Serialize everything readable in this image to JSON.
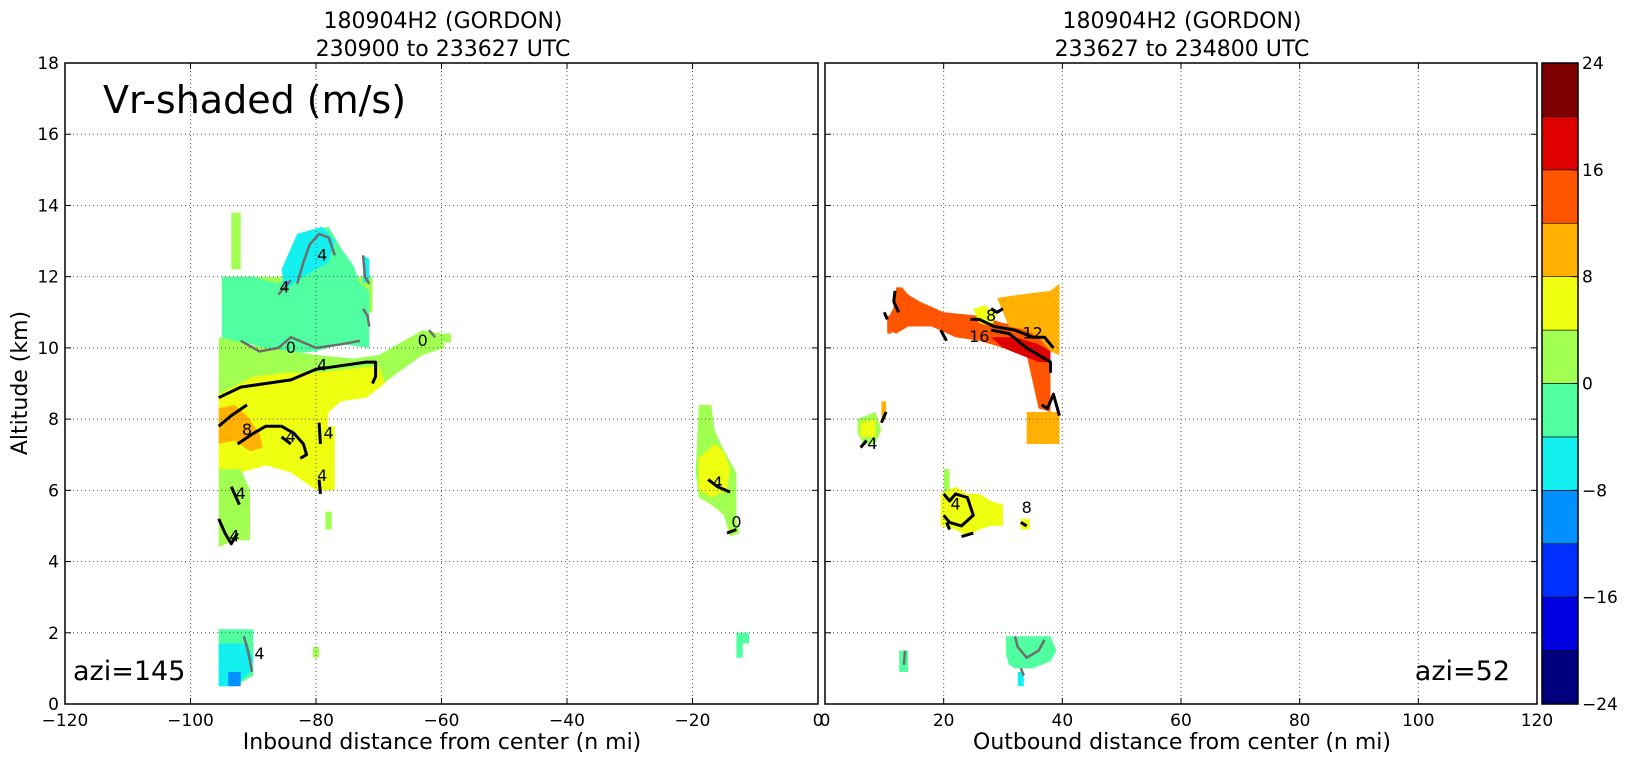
{
  "left_panel": {
    "title_line1": "180904H2 (GORDON)",
    "title_line2": "230900 to 233627 UTC",
    "xlabel": "Inbound distance from center (n mi)",
    "ylabel": "Altitude (km)",
    "inset_label": "Vr-shaded (m/s)",
    "azi_label": "azi=145"
  },
  "right_panel": {
    "title_line1": "180904H2 (GORDON)",
    "title_line2": "233627 to 234800 UTC",
    "xlabel": "Outbound distance from center (n mi)",
    "azi_label": "azi=52"
  },
  "colorbar": {
    "levels": [
      -24,
      -20,
      -16,
      -12,
      -8,
      -4,
      0,
      4,
      8,
      12,
      16,
      20,
      24
    ],
    "tick_labels": [
      "24",
      "16",
      "8",
      "0",
      "−8",
      "−16",
      "−24"
    ],
    "tick_values": [
      24,
      16,
      8,
      0,
      -8,
      -16,
      -24
    ],
    "colors": [
      "#00007f",
      "#0000e0",
      "#0030ff",
      "#0090ff",
      "#12f0f0",
      "#50ffa0",
      "#a0ff50",
      "#eeff10",
      "#ffb000",
      "#ff5500",
      "#e00000",
      "#7f0000"
    ]
  },
  "chart_data": [
    {
      "type": "heatmap",
      "title": "180904H2 (GORDON) 230900 to 233627 UTC",
      "xlabel": "Inbound distance from center (n mi)",
      "ylabel": "Altitude (km)",
      "xlim": [
        -120,
        0
      ],
      "ylim": [
        0,
        18
      ],
      "x_ticks": [
        "−120",
        "−100",
        "−80",
        "−60",
        "−40",
        "−20",
        "0"
      ],
      "x_tick_values": [
        -120,
        -100,
        -80,
        -60,
        -40,
        -20,
        0
      ],
      "y_ticks": [
        "0",
        "2",
        "4",
        "6",
        "8",
        "10",
        "12",
        "14",
        "16",
        "18"
      ],
      "y_tick_values": [
        0,
        2,
        4,
        6,
        8,
        10,
        12,
        14,
        16,
        18
      ],
      "grid": true,
      "contour_labels": [
        {
          "text": "4",
          "x": -79,
          "y": 12.6
        },
        {
          "text": "4",
          "x": -85,
          "y": 11.7
        },
        {
          "text": "0",
          "x": -84,
          "y": 10.0
        },
        {
          "text": "0",
          "x": -63,
          "y": 10.2
        },
        {
          "text": "4",
          "x": -79,
          "y": 9.5
        },
        {
          "text": "8",
          "x": -91,
          "y": 7.7
        },
        {
          "text": "4",
          "x": -84,
          "y": 7.5
        },
        {
          "text": "4",
          "x": -78,
          "y": 7.6
        },
        {
          "text": "4",
          "x": -79,
          "y": 6.4
        },
        {
          "text": "4",
          "x": -92,
          "y": 5.9
        },
        {
          "text": "4",
          "x": -93,
          "y": 4.7
        },
        {
          "text": "4",
          "x": -16,
          "y": 6.2
        },
        {
          "text": "0",
          "x": -13,
          "y": 5.1
        },
        {
          "text": "4",
          "x": -89,
          "y": 1.4
        }
      ]
    },
    {
      "type": "heatmap",
      "title": "180904H2 (GORDON) 233627 to 234800 UTC",
      "xlabel": "Outbound distance from center (n mi)",
      "xlim": [
        0,
        120
      ],
      "ylim": [
        0,
        18
      ],
      "x_ticks": [
        "0",
        "20",
        "40",
        "60",
        "80",
        "100",
        "120"
      ],
      "x_tick_values": [
        0,
        20,
        40,
        60,
        80,
        100,
        120
      ],
      "grid": true,
      "contour_labels": [
        {
          "text": "8",
          "x": 28,
          "y": 10.9
        },
        {
          "text": "16",
          "x": 26,
          "y": 10.3
        },
        {
          "text": "12",
          "x": 35,
          "y": 10.4
        },
        {
          "text": "4",
          "x": 8,
          "y": 7.3
        },
        {
          "text": "4",
          "x": 22,
          "y": 5.6
        },
        {
          "text": "8",
          "x": 34,
          "y": 5.5
        }
      ]
    }
  ]
}
